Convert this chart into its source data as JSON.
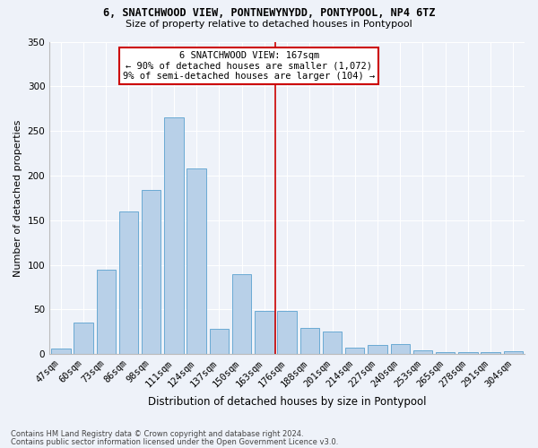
{
  "title1": "6, SNATCHWOOD VIEW, PONTNEWYNYDD, PONTYPOOL, NP4 6TZ",
  "title2": "Size of property relative to detached houses in Pontypool",
  "xlabel": "Distribution of detached houses by size in Pontypool",
  "ylabel": "Number of detached properties",
  "categories": [
    "47sqm",
    "60sqm",
    "73sqm",
    "86sqm",
    "98sqm",
    "111sqm",
    "124sqm",
    "137sqm",
    "150sqm",
    "163sqm",
    "176sqm",
    "188sqm",
    "201sqm",
    "214sqm",
    "227sqm",
    "240sqm",
    "253sqm",
    "265sqm",
    "278sqm",
    "291sqm",
    "304sqm"
  ],
  "values": [
    6,
    35,
    95,
    160,
    184,
    265,
    208,
    28,
    90,
    48,
    48,
    29,
    25,
    7,
    10,
    11,
    4,
    2,
    2,
    2,
    3
  ],
  "bar_color": "#b8d0e8",
  "bar_edge_color": "#6aaad4",
  "vline_x_index": 9.5,
  "vline_color": "#cc0000",
  "annotation_line1": "6 SNATCHWOOD VIEW: 167sqm",
  "annotation_line2": "← 90% of detached houses are smaller (1,072)",
  "annotation_line3": "9% of semi-detached houses are larger (104) →",
  "annotation_box_facecolor": "white",
  "annotation_box_edgecolor": "#cc0000",
  "ylim": [
    0,
    350
  ],
  "yticks": [
    0,
    50,
    100,
    150,
    200,
    250,
    300,
    350
  ],
  "footer1": "Contains HM Land Registry data © Crown copyright and database right 2024.",
  "footer2": "Contains public sector information licensed under the Open Government Licence v3.0.",
  "bg_color": "#eef2f9",
  "grid_color": "white",
  "title1_fontsize": 8.5,
  "title2_fontsize": 8.0,
  "xlabel_fontsize": 8.5,
  "ylabel_fontsize": 8.0,
  "tick_fontsize": 7.5,
  "annotation_fontsize": 7.5,
  "footer_fontsize": 6.0
}
